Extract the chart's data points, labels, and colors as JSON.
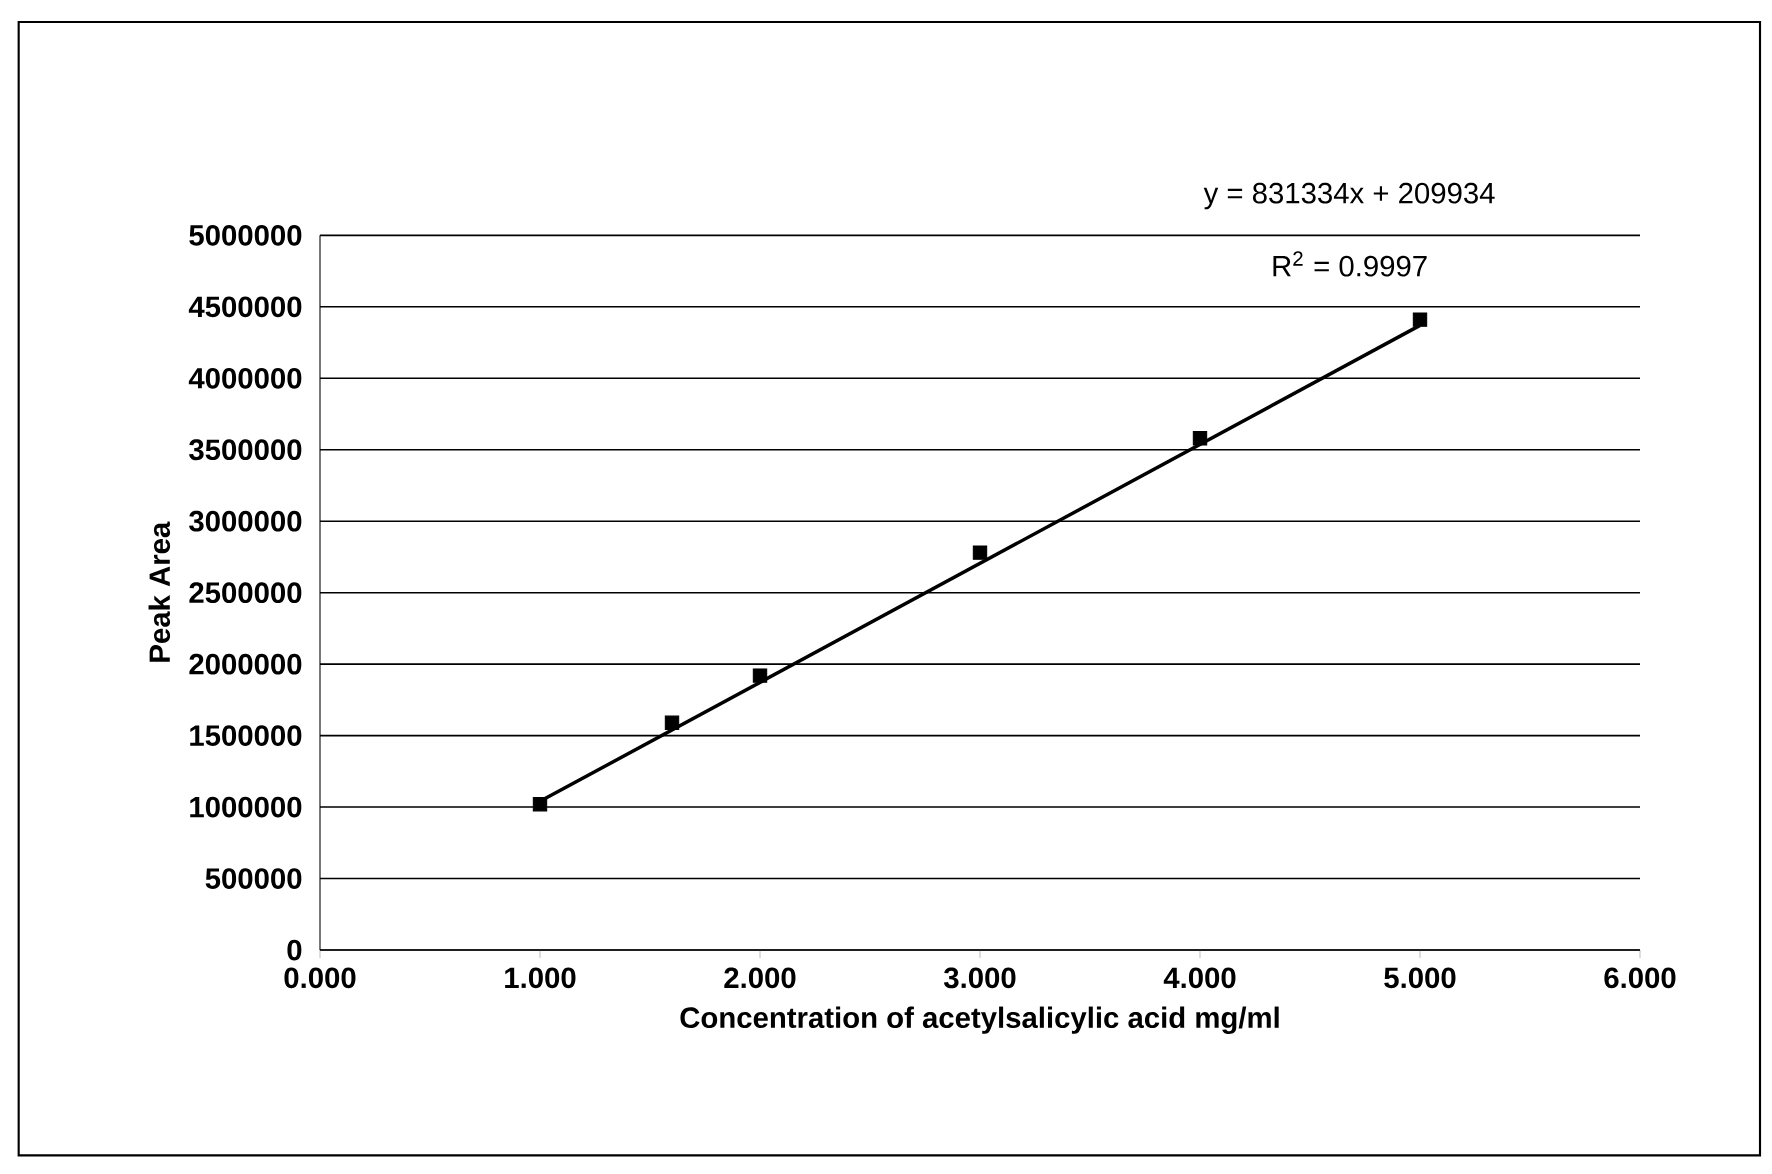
{
  "chart_data": {
    "type": "scatter",
    "xlabel": "Concentration of acetylsalicylic acid  mg/ml",
    "ylabel": "Peak Area",
    "series": [
      {
        "marker": "square",
        "color": "#000000",
        "x": [
          1.0,
          1.6,
          2.0,
          3.0,
          4.0,
          5.0
        ],
        "values": [
          1020000,
          1590000,
          1920000,
          2780000,
          3580000,
          4410000
        ]
      },
      {
        "type": "line",
        "marker": "none",
        "color": "#000000",
        "x": [
          1.0,
          5.0
        ],
        "values": [
          1040000,
          4370000
        ]
      }
    ],
    "xlim": [
      0,
      6
    ],
    "ylim": [
      0,
      5000000
    ],
    "xticks": [
      {
        "value": 0,
        "label": "0.000"
      },
      {
        "value": 1,
        "label": "1.000"
      },
      {
        "value": 2,
        "label": "2.000"
      },
      {
        "value": 3,
        "label": "3.000"
      },
      {
        "value": 4,
        "label": "4.000"
      },
      {
        "value": 5,
        "label": "5.000"
      },
      {
        "value": 6,
        "label": "6.000"
      }
    ],
    "yticks": [
      0,
      500000,
      1000000,
      1500000,
      2000000,
      2500000,
      3000000,
      3500000,
      4000000,
      4500000,
      5000000
    ],
    "grid": "y",
    "annotations": [
      "y = 831334x + 209934",
      "R$^{2}$ = 0.9997"
    ]
  }
}
